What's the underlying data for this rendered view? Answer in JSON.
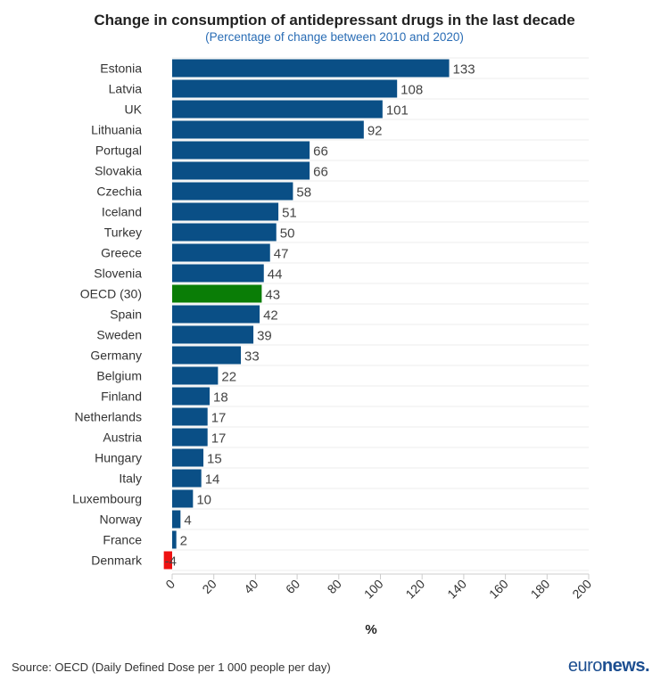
{
  "chart_data": {
    "type": "bar",
    "orientation": "horizontal",
    "title": "Change in consumption of antidepressant drugs in the last decade",
    "subtitle": "(Percentage of change between 2010 and 2020)",
    "xlabel": "%",
    "ylabel": "",
    "xlim": [
      0,
      200
    ],
    "xticks": [
      0,
      20,
      40,
      60,
      80,
      100,
      120,
      140,
      160,
      180,
      200
    ],
    "grid": true,
    "categories": [
      "Estonia",
      "Latvia",
      "UK",
      "Lithuania",
      "Portugal",
      "Slovakia",
      "Czechia",
      "Iceland",
      "Turkey",
      "Greece",
      "Slovenia",
      "OECD (30)",
      "Spain",
      "Sweden",
      "Germany",
      "Belgium",
      "Finland",
      "Netherlands",
      "Austria",
      "Hungary",
      "Italy",
      "Luxembourg",
      "Norway",
      "France",
      "Denmark"
    ],
    "values": [
      133,
      108,
      101,
      92,
      66,
      66,
      58,
      51,
      50,
      47,
      44,
      43,
      42,
      39,
      33,
      22,
      18,
      17,
      17,
      15,
      14,
      10,
      4,
      2,
      -4
    ],
    "colors": {
      "default": "#0a4f86",
      "OECD (30)": "#0a7d06",
      "negative": "#ee1111"
    }
  },
  "source": "Source: OECD (Daily Defined Dose per 1 000 people per day)",
  "brand": {
    "part1": "euro",
    "part2": "news."
  }
}
